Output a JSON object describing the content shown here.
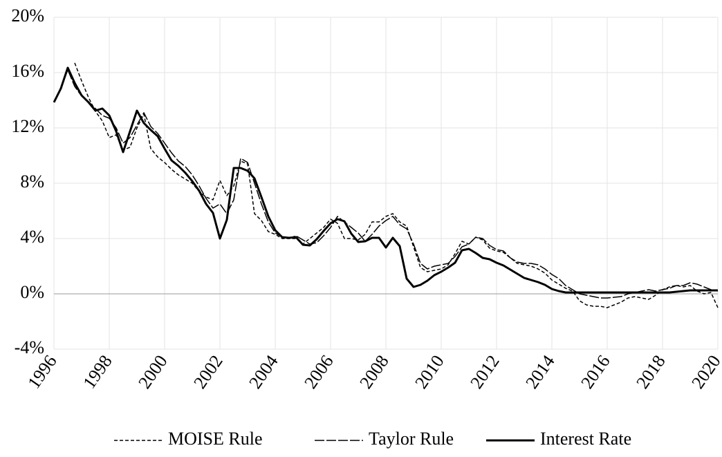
{
  "chart_data": {
    "type": "line",
    "x": [
      1996,
      1996.25,
      1996.5,
      1996.75,
      1997,
      1997.25,
      1997.5,
      1997.75,
      1998,
      1998.25,
      1998.5,
      1998.75,
      1999,
      1999.25,
      1999.5,
      1999.75,
      2000,
      2000.25,
      2000.5,
      2000.75,
      2001,
      2001.25,
      2001.5,
      2001.75,
      2002,
      2002.25,
      2002.5,
      2002.75,
      2003,
      2003.25,
      2003.5,
      2003.75,
      2004,
      2004.25,
      2004.5,
      2004.75,
      2005,
      2005.25,
      2005.5,
      2005.75,
      2006,
      2006.25,
      2006.5,
      2006.75,
      2007,
      2007.25,
      2007.5,
      2007.75,
      2008,
      2008.25,
      2008.5,
      2008.75,
      2009,
      2009.25,
      2009.5,
      2009.75,
      2010,
      2010.25,
      2010.5,
      2010.75,
      2011,
      2011.25,
      2011.5,
      2011.75,
      2012,
      2012.25,
      2012.5,
      2012.75,
      2013,
      2013.25,
      2013.5,
      2013.75,
      2014,
      2014.25,
      2014.5,
      2014.75,
      2015,
      2015.25,
      2015.5,
      2015.75,
      2016,
      2016.25,
      2016.5,
      2016.75,
      2017,
      2017.25,
      2017.5,
      2017.75,
      2018,
      2018.25,
      2018.5,
      2018.75,
      2019,
      2019.25,
      2019.5,
      2019.75,
      2020
    ],
    "series": [
      {
        "name": "MOISE Rule",
        "color": "#000000",
        "style": "short-dash",
        "values": [
          null,
          null,
          null,
          16.7,
          15.4,
          14.2,
          13.2,
          12.5,
          11.3,
          11.5,
          10.4,
          10.6,
          12.0,
          13.0,
          10.5,
          9.9,
          9.5,
          9.0,
          8.6,
          8.3,
          8.0,
          7.4,
          7.0,
          6.8,
          8.2,
          7.1,
          7.8,
          9.6,
          9.4,
          5.8,
          5.3,
          4.5,
          4.3,
          4.0,
          4.0,
          4.0,
          3.6,
          4.0,
          4.4,
          4.8,
          5.4,
          5.1,
          4.0,
          4.0,
          3.9,
          4.3,
          5.2,
          5.2,
          5.6,
          5.8,
          5.2,
          4.9,
          3.4,
          1.9,
          1.6,
          1.7,
          1.8,
          2.1,
          2.9,
          3.8,
          3.6,
          4.1,
          3.9,
          3.3,
          3.1,
          3.0,
          2.6,
          2.2,
          2.1,
          2.0,
          1.8,
          1.5,
          1.0,
          0.7,
          0.4,
          0.2,
          -0.5,
          -0.8,
          -0.9,
          -0.9,
          -1.0,
          -0.8,
          -0.6,
          -0.3,
          -0.2,
          -0.3,
          -0.4,
          -0.1,
          0.3,
          0.5,
          0.6,
          0.5,
          0.6,
          0.2,
          0.0,
          0.1,
          -1.0
        ]
      },
      {
        "name": "Taylor Rule",
        "color": "#000000",
        "style": "long-dash",
        "values": [
          13.9,
          14.9,
          16.2,
          15.0,
          14.3,
          13.9,
          13.4,
          12.9,
          12.7,
          12.0,
          10.9,
          11.3,
          12.2,
          13.1,
          12.1,
          11.6,
          10.9,
          10.2,
          9.6,
          9.2,
          8.6,
          7.8,
          6.9,
          6.2,
          6.5,
          5.8,
          6.8,
          9.8,
          9.5,
          8.0,
          6.5,
          5.2,
          4.4,
          4.1,
          4.0,
          4.2,
          3.9,
          3.6,
          3.7,
          4.2,
          4.8,
          5.6,
          5.2,
          4.8,
          4.4,
          3.8,
          4.3,
          4.9,
          5.3,
          5.6,
          5.0,
          4.7,
          3.6,
          2.2,
          1.8,
          2.0,
          2.1,
          2.2,
          2.7,
          3.4,
          3.6,
          4.1,
          4.0,
          3.5,
          3.2,
          3.1,
          2.6,
          2.3,
          2.2,
          2.2,
          2.1,
          1.8,
          1.4,
          1.1,
          0.6,
          0.3,
          0.0,
          -0.1,
          -0.2,
          -0.3,
          -0.3,
          -0.25,
          -0.2,
          0.0,
          0.1,
          0.2,
          0.3,
          0.2,
          0.3,
          0.4,
          0.6,
          0.6,
          0.8,
          0.7,
          0.5,
          0.3,
          0.2
        ]
      },
      {
        "name": "Interest Rate",
        "color": "#000000",
        "style": "thick",
        "values": [
          13.85,
          14.85,
          16.35,
          15.25,
          14.35,
          13.85,
          13.25,
          13.4,
          12.9,
          11.75,
          10.25,
          11.75,
          13.25,
          12.35,
          11.85,
          11.4,
          10.5,
          9.65,
          9.25,
          8.75,
          8.15,
          7.45,
          6.5,
          5.85,
          4.0,
          5.35,
          9.1,
          9.1,
          8.9,
          8.35,
          7.0,
          5.6,
          4.6,
          4.1,
          4.05,
          4.1,
          3.55,
          3.5,
          3.95,
          4.55,
          5.1,
          5.4,
          5.25,
          4.35,
          3.75,
          3.8,
          4.05,
          4.05,
          3.35,
          4.05,
          3.45,
          1.1,
          0.5,
          0.65,
          0.95,
          1.35,
          1.6,
          1.9,
          2.25,
          3.15,
          3.25,
          2.95,
          2.6,
          2.5,
          2.25,
          2.05,
          1.75,
          1.45,
          1.15,
          1.0,
          0.85,
          0.65,
          0.35,
          0.2,
          0.1,
          0.1,
          0.1,
          0.1,
          0.1,
          0.1,
          0.1,
          0.1,
          0.1,
          0.1,
          0.1,
          0.1,
          0.1,
          0.1,
          0.1,
          0.1,
          0.15,
          0.2,
          0.25,
          0.25,
          0.25,
          0.25,
          0.25
        ]
      }
    ],
    "xlim": [
      1996,
      2020
    ],
    "xticks": [
      1996,
      1998,
      2000,
      2002,
      2004,
      2006,
      2008,
      2010,
      2012,
      2014,
      2016,
      2018,
      2020
    ],
    "ylim": [
      -4,
      20
    ],
    "yticks": [
      {
        "value": -4,
        "label": "-4%"
      },
      {
        "value": 0,
        "label": "0%"
      },
      {
        "value": 4,
        "label": "4%"
      },
      {
        "value": 8,
        "label": "8%"
      },
      {
        "value": 12,
        "label": "12%"
      },
      {
        "value": 16,
        "label": "16%"
      },
      {
        "value": 20,
        "label": "20%"
      }
    ],
    "grid": true,
    "legend": "bottom"
  }
}
